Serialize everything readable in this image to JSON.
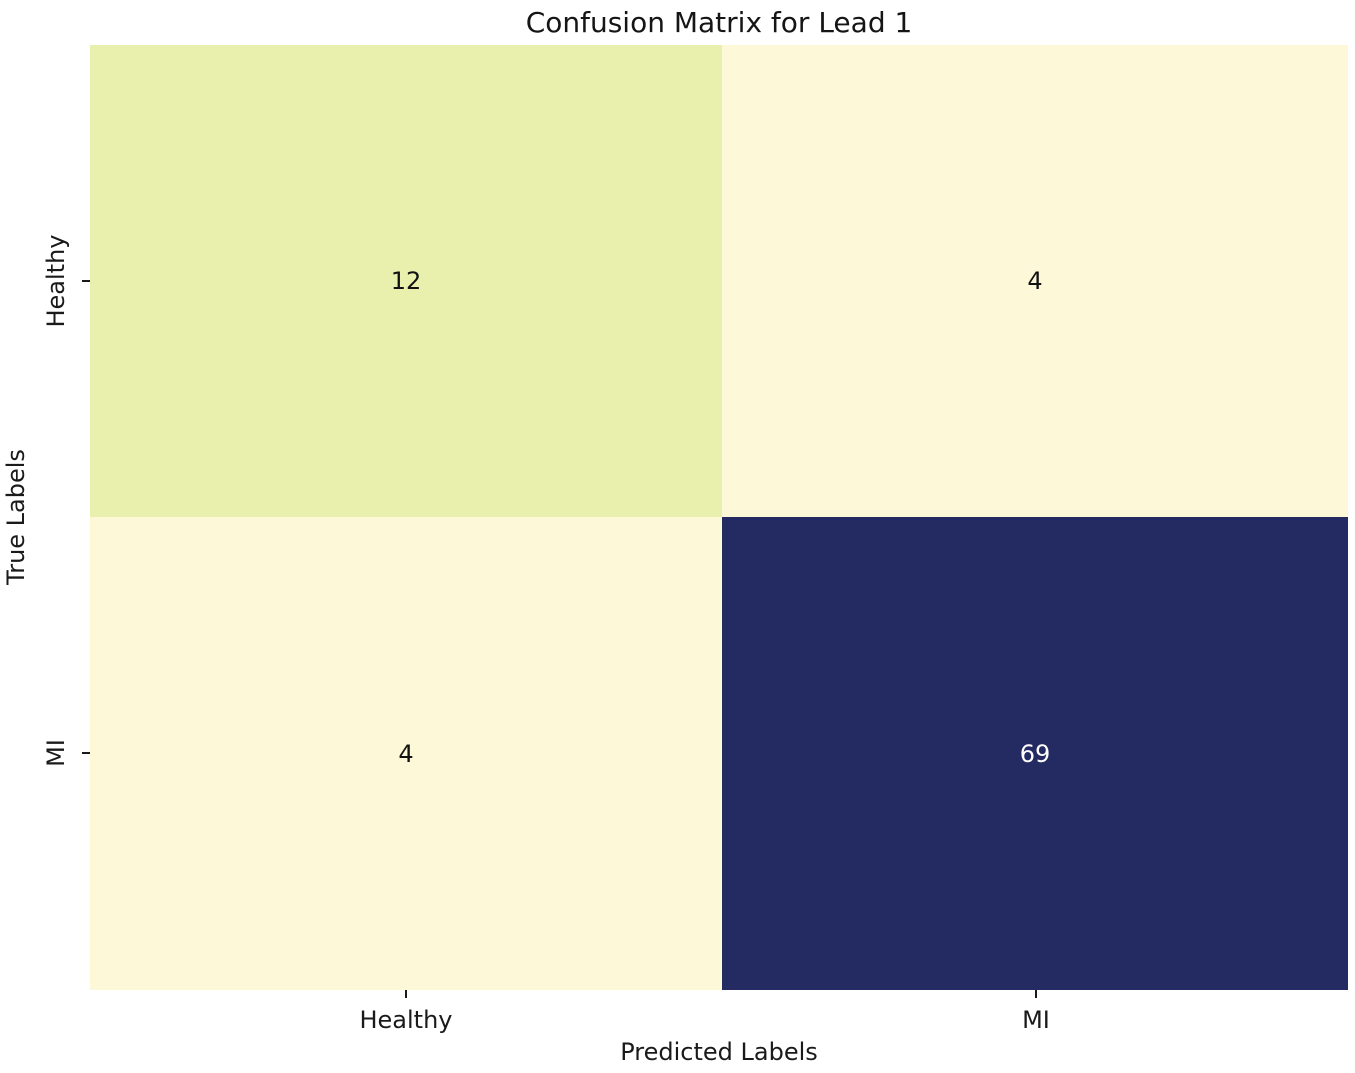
{
  "chart_data": {
    "type": "heatmap",
    "title": "Confusion Matrix for Lead 1",
    "xlabel": "Predicted Labels",
    "ylabel": "True Labels",
    "x_categories": [
      "Healthy",
      "MI"
    ],
    "y_categories": [
      "Healthy",
      "MI"
    ],
    "matrix": [
      [
        12,
        4
      ],
      [
        4,
        69
      ]
    ],
    "colormap": "YlGnBu",
    "color_scale_min": 4,
    "color_scale_max": 69,
    "legend": "none",
    "grid": false,
    "cell_styles": {
      "r0c0": "background:#e9efac;color:#121212",
      "r0c1": "background:#fdf9d8;color:#121212",
      "r1c0": "background:#fdf9d8;color:#121212",
      "r1c1": "background:#242a62;color:#ffffff"
    }
  }
}
